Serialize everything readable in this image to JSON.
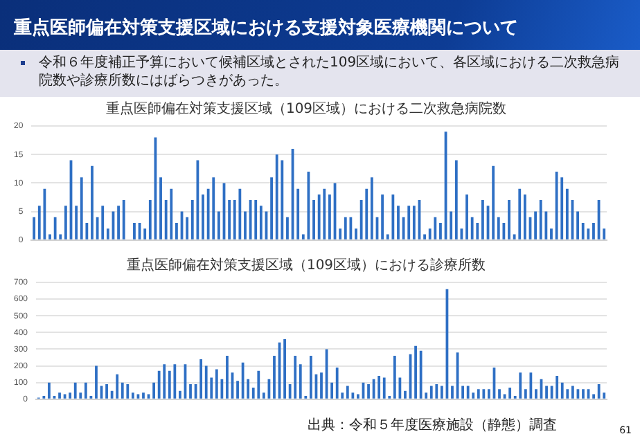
{
  "chart_data": [
    {
      "type": "bar",
      "title": "重点医師偏在対策支援区域（109区域）における二次救急病院数",
      "annotations": [
        "重点医師偏在対策支援区域における支援対象医療機関について",
        "令和６年度補正予算において候補区域とされた109区域において、各区域における二次救急病院数や診療所数にはばらつきがあった。"
      ],
      "categories": [
        null,
        null,
        null,
        null,
        null,
        null,
        null,
        null,
        null,
        null,
        null,
        null,
        null,
        null,
        null,
        null,
        null,
        null,
        null,
        null,
        null,
        null,
        null,
        null,
        null,
        null,
        null,
        null,
        null,
        null,
        null,
        null,
        null,
        null,
        null,
        null,
        null,
        null,
        null,
        null,
        null,
        null,
        null,
        null,
        null,
        null,
        null,
        null,
        null,
        null,
        null,
        null,
        null,
        null,
        null,
        null,
        null,
        null,
        null,
        null,
        null,
        null,
        null,
        null,
        null,
        null,
        null,
        null,
        null,
        null,
        null,
        null,
        null,
        null,
        null,
        null,
        null,
        null,
        null,
        null,
        null,
        null,
        null,
        null,
        null,
        null,
        null,
        null,
        null,
        null,
        null,
        null,
        null,
        null,
        null,
        null,
        null,
        null,
        null,
        null,
        null,
        null,
        null,
        null,
        null,
        null,
        null,
        null,
        null
      ],
      "values": [
        4,
        6,
        9,
        1,
        4,
        1,
        6,
        14,
        6,
        11,
        3,
        13,
        4,
        6,
        2,
        5,
        6,
        7,
        0,
        3,
        3,
        2,
        7,
        18,
        11,
        7,
        9,
        3,
        5,
        4,
        7,
        14,
        8,
        9,
        11,
        5,
        10,
        7,
        7,
        9,
        5,
        7,
        7,
        6,
        5,
        11,
        15,
        14,
        4,
        16,
        9,
        1,
        12,
        7,
        8,
        9,
        8,
        10,
        2,
        4,
        4,
        2,
        7,
        9,
        11,
        4,
        8,
        1,
        8,
        6,
        4,
        6,
        6,
        7,
        1,
        2,
        4,
        3,
        19,
        5,
        14,
        2,
        8,
        4,
        3,
        7,
        6,
        13,
        4,
        3,
        7,
        1,
        9,
        8,
        4,
        5,
        7,
        5,
        2,
        12,
        11,
        9,
        7,
        5,
        3,
        2,
        3,
        7,
        2
      ],
      "color": "#2e6fc4",
      "ylim": [
        0,
        20
      ],
      "yticks": [
        0,
        5,
        10,
        15,
        20
      ],
      "grid": "y",
      "tick_labels": "y"
    },
    {
      "type": "bar",
      "title": "重点医師偏在対策支援区域（109区域）における診療所数",
      "annotations": [
        "出典：令和５年度医療施設（静態）調査",
        "61"
      ],
      "categories": [
        null,
        null,
        null,
        null,
        null,
        null,
        null,
        null,
        null,
        null,
        null,
        null,
        null,
        null,
        null,
        null,
        null,
        null,
        null,
        null,
        null,
        null,
        null,
        null,
        null,
        null,
        null,
        null,
        null,
        null,
        null,
        null,
        null,
        null,
        null,
        null,
        null,
        null,
        null,
        null,
        null,
        null,
        null,
        null,
        null,
        null,
        null,
        null,
        null,
        null,
        null,
        null,
        null,
        null,
        null,
        null,
        null,
        null,
        null,
        null,
        null,
        null,
        null,
        null,
        null,
        null,
        null,
        null,
        null,
        null,
        null,
        null,
        null,
        null,
        null,
        null,
        null,
        null,
        null,
        null,
        null,
        null,
        null,
        null,
        null,
        null,
        null,
        null,
        null,
        null,
        null,
        null,
        null,
        null,
        null,
        null,
        null,
        null,
        null,
        null,
        null,
        null,
        null,
        null,
        null,
        null,
        null,
        null,
        null
      ],
      "values": [
        10,
        20,
        100,
        20,
        40,
        30,
        40,
        100,
        40,
        100,
        20,
        200,
        80,
        90,
        50,
        150,
        100,
        90,
        40,
        30,
        40,
        30,
        100,
        170,
        210,
        170,
        210,
        50,
        210,
        90,
        90,
        240,
        200,
        130,
        180,
        120,
        260,
        160,
        110,
        220,
        120,
        70,
        170,
        40,
        120,
        260,
        340,
        360,
        90,
        260,
        210,
        20,
        260,
        150,
        160,
        300,
        100,
        190,
        40,
        80,
        40,
        30,
        100,
        90,
        120,
        140,
        130,
        20,
        260,
        130,
        50,
        270,
        320,
        290,
        40,
        80,
        90,
        80,
        660,
        80,
        280,
        80,
        80,
        40,
        60,
        60,
        60,
        190,
        60,
        30,
        70,
        20,
        160,
        60,
        160,
        60,
        120,
        80,
        80,
        140,
        100,
        60,
        80,
        60,
        60,
        60,
        30,
        90,
        40
      ],
      "color": "#2e6fc4",
      "ylim": [
        0,
        700
      ],
      "yticks": [
        0,
        100,
        200,
        300,
        400,
        500,
        600,
        700
      ],
      "grid": "y",
      "tick_labels": "y"
    }
  ]
}
